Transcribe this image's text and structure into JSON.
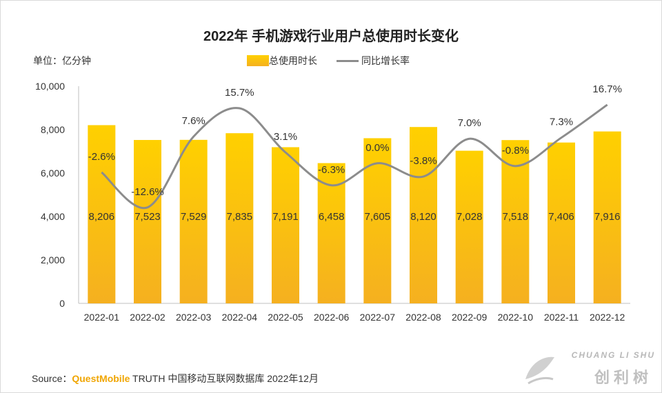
{
  "chart_data": {
    "type": "bar",
    "title": "2022年 手机游戏行业用户总使用时长变化",
    "unit_label": "单位：亿分钟",
    "categories": [
      "2022-01",
      "2022-02",
      "2022-03",
      "2022-04",
      "2022-05",
      "2022-06",
      "2022-07",
      "2022-08",
      "2022-09",
      "2022-10",
      "2022-11",
      "2022-12"
    ],
    "series": [
      {
        "name": "总使用时长",
        "kind": "bar",
        "values": [
          8206,
          7523,
          7529,
          7835,
          7191,
          6458,
          7605,
          8120,
          7028,
          7518,
          7406,
          7916
        ],
        "labels": [
          "8,206",
          "7,523",
          "7,529",
          "7,835",
          "7,191",
          "6,458",
          "7,605",
          "8,120",
          "7,028",
          "7,518",
          "7,406",
          "7,916"
        ]
      },
      {
        "name": "同比增长率",
        "kind": "line",
        "axis": "secondary",
        "values": [
          -2.6,
          -12.6,
          7.6,
          15.7,
          3.1,
          -6.3,
          0.0,
          -3.8,
          7.0,
          -0.8,
          7.3,
          16.7
        ],
        "labels": [
          "-2.6%",
          "-12.6%",
          "7.6%",
          "15.7%",
          "3.1%",
          "-6.3%",
          "0.0%",
          "-3.8%",
          "7.0%",
          "-0.8%",
          "7.3%",
          "16.7%"
        ]
      }
    ],
    "ylim": [
      0,
      10000
    ],
    "y2lim": [
      -40,
      22
    ],
    "yticks": [
      0,
      2000,
      4000,
      6000,
      8000,
      10000
    ],
    "ytick_labels": [
      "0",
      "2,000",
      "4,000",
      "6,000",
      "8,000",
      "10,000"
    ],
    "colors": {
      "bar_top": "#ffd000",
      "bar_bottom": "#f5b020",
      "line": "#8c8c8c"
    }
  },
  "source": {
    "prefix": "Source：",
    "brand": "QuestMobile",
    "rest": " TRUTH 中国移动互联网数据库 2022年12月"
  },
  "logo": {
    "en": "CHUANG LI SHU",
    "cn": "创利树"
  }
}
